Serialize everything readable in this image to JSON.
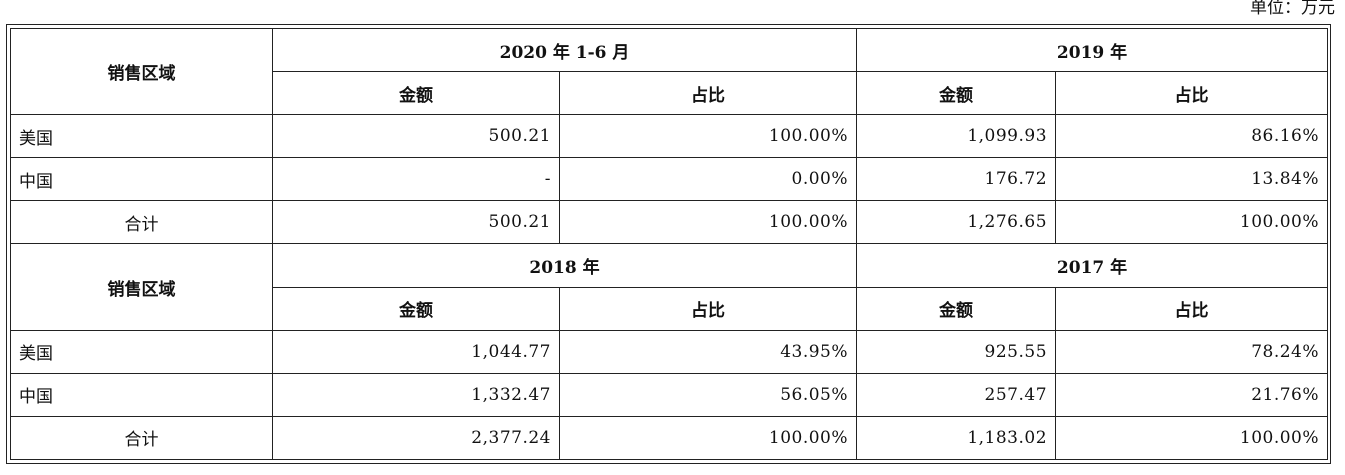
{
  "unit_note": "单位：万元",
  "sections": [
    {
      "region_header": "销售区域",
      "periods": [
        "2020 年 1-6 月",
        "2019 年"
      ],
      "sub_headers": [
        "金额",
        "占比",
        "金额",
        "占比"
      ],
      "rows": [
        {
          "region": "美国",
          "cells": [
            "500.21",
            "100.00%",
            "1,099.93",
            "86.16%"
          ]
        },
        {
          "region": "中国",
          "cells": [
            "-",
            "0.00%",
            "176.72",
            "13.84%"
          ]
        },
        {
          "region": "合计",
          "cells": [
            "500.21",
            "100.00%",
            "1,276.65",
            "100.00%"
          ]
        }
      ]
    },
    {
      "region_header": "销售区域",
      "periods": [
        "2018 年",
        "2017 年"
      ],
      "sub_headers": [
        "金额",
        "占比",
        "金额",
        "占比"
      ],
      "rows": [
        {
          "region": "美国",
          "cells": [
            "1,044.77",
            "43.95%",
            "925.55",
            "78.24%"
          ]
        },
        {
          "region": "中国",
          "cells": [
            "1,332.47",
            "56.05%",
            "257.47",
            "21.76%"
          ]
        },
        {
          "region": "合计",
          "cells": [
            "2,377.24",
            "100.00%",
            "1,183.02",
            "100.00%"
          ]
        }
      ]
    }
  ]
}
